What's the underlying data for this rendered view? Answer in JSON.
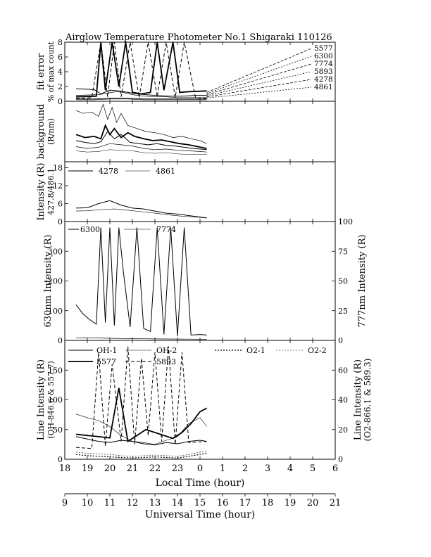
{
  "title": "Airglow Temperature Photometer No.1  Shigaraki  110126",
  "local_axis": {
    "label": "Local Time (hour)",
    "ticks": [
      "18",
      "19",
      "20",
      "21",
      "22",
      "23",
      "0",
      "1",
      "2",
      "3",
      "4",
      "5",
      "6"
    ]
  },
  "ut_axis": {
    "label": "Universal Time (hour)",
    "ticks": [
      "9",
      "10",
      "11",
      "12",
      "13",
      "14",
      "15",
      "16",
      "17",
      "18",
      "19",
      "20",
      "21"
    ]
  },
  "chart_data": [
    {
      "id": "fit_error",
      "type": "line",
      "ylabel_lines": [
        "fit error",
        "% of max count"
      ],
      "ylim": [
        0,
        8
      ],
      "yticks": [
        "0",
        "2",
        "4",
        "6",
        "8"
      ],
      "legend_labels": [
        "5577",
        "6300",
        "7774",
        "5893",
        "4278",
        "4861"
      ],
      "series": [
        {
          "name": "5577",
          "x": [
            18.5,
            19.4,
            19.6,
            19.8,
            20.1,
            20.4,
            20.7,
            21.0,
            21.4,
            21.8,
            22.1,
            22.4,
            22.8,
            23.1,
            23.5,
            0.3
          ],
          "y": [
            0.6,
            0.7,
            8,
            1.5,
            8,
            2,
            8,
            1.2,
            1.0,
            1.2,
            8,
            1.5,
            8,
            1.2,
            1.3,
            1.4
          ]
        },
        {
          "name": "6300",
          "x": [
            18.5,
            19.3,
            19.6,
            20.0,
            20.4,
            20.8,
            21.2,
            21.6,
            22.0,
            22.6,
            23.2,
            23.8,
            0.3
          ],
          "y": [
            1.7,
            1.6,
            1.0,
            1.5,
            1.4,
            1.2,
            1.0,
            0.9,
            0.8,
            0.7,
            0.7,
            0.8,
            0.8
          ]
        },
        {
          "name": "7774",
          "x": [
            18.5,
            19.5,
            19.9,
            20.3,
            20.6,
            21.0,
            21.5,
            22.0,
            22.5,
            23.0,
            23.5,
            0.3
          ],
          "y": [
            0.8,
            0.9,
            1.1,
            1.3,
            1.2,
            0.9,
            0.7,
            0.6,
            0.6,
            0.5,
            0.5,
            0.5
          ]
        },
        {
          "name": "5893",
          "x": [
            18.5,
            19.2,
            19.6,
            19.9,
            20.2,
            20.5,
            20.9,
            21.3,
            21.7,
            22.1,
            22.5,
            22.9,
            23.3,
            23.8,
            0.3
          ],
          "y": [
            0.4,
            0.5,
            8,
            0.6,
            8,
            0.6,
            8,
            0.5,
            8,
            0.6,
            8,
            0.5,
            8,
            0.5,
            0.4
          ]
        },
        {
          "name": "4278",
          "x": [
            18.5,
            19.3,
            20.0,
            20.8,
            21.5,
            22.2,
            23.0,
            23.7,
            0.3
          ],
          "y": [
            0.3,
            0.3,
            0.4,
            0.4,
            0.3,
            0.3,
            0.3,
            0.3,
            0.3
          ]
        },
        {
          "name": "4861",
          "x": [
            18.5,
            19.3,
            20.0,
            20.8,
            21.5,
            22.2,
            23.0,
            23.7,
            0.3
          ],
          "y": [
            0.2,
            0.2,
            0.3,
            0.3,
            0.2,
            0.2,
            0.2,
            0.2,
            0.2
          ]
        }
      ]
    },
    {
      "id": "background",
      "type": "line",
      "ylabel_lines": [
        "background",
        "(R/nm)"
      ],
      "ylim": [
        0,
        100
      ],
      "yticks": [],
      "series": [
        {
          "name": "b1",
          "x": [
            18.5,
            18.8,
            19.2,
            19.5,
            19.7,
            19.9,
            20.1,
            20.3,
            20.5,
            20.8,
            21.2,
            21.6,
            22.0,
            22.4,
            22.8,
            23.2,
            23.6,
            0.0,
            0.3
          ],
          "y": [
            85,
            80,
            82,
            75,
            95,
            70,
            90,
            65,
            80,
            60,
            55,
            50,
            48,
            45,
            40,
            42,
            38,
            35,
            30
          ]
        },
        {
          "name": "b2",
          "x": [
            18.5,
            18.9,
            19.3,
            19.6,
            19.8,
            20.0,
            20.2,
            20.5,
            20.8,
            21.1,
            21.5,
            21.9,
            22.3,
            22.7,
            23.1,
            23.5,
            23.9,
            0.3
          ],
          "y": [
            45,
            40,
            42,
            38,
            60,
            45,
            55,
            40,
            48,
            42,
            38,
            35,
            36,
            33,
            30,
            28,
            25,
            22
          ]
        },
        {
          "name": "b3",
          "x": [
            18.5,
            18.9,
            19.3,
            19.6,
            19.9,
            20.2,
            20.5,
            20.9,
            21.3,
            21.7,
            22.1,
            22.5,
            22.9,
            23.3,
            23.7,
            0.3
          ],
          "y": [
            35,
            32,
            30,
            33,
            50,
            38,
            45,
            32,
            30,
            28,
            30,
            27,
            26,
            24,
            22,
            20
          ]
        },
        {
          "name": "b4",
          "x": [
            18.5,
            19.0,
            19.5,
            20.0,
            20.5,
            21.0,
            21.5,
            22.0,
            22.5,
            23.0,
            23.5,
            0.0,
            0.3
          ],
          "y": [
            25,
            22,
            24,
            30,
            28,
            26,
            22,
            20,
            21,
            19,
            18,
            17,
            16
          ]
        },
        {
          "name": "b5",
          "x": [
            18.5,
            19.0,
            19.5,
            20.0,
            20.5,
            21.0,
            21.5,
            22.0,
            22.5,
            23.0,
            23.5,
            0.3
          ],
          "y": [
            18,
            16,
            17,
            20,
            19,
            18,
            15,
            14,
            15,
            13,
            12,
            12
          ]
        }
      ]
    },
    {
      "id": "intensity_427",
      "type": "line",
      "ylabel_lines": [
        "Intensity (R)",
        "427.8/486.1"
      ],
      "ylim": [
        0,
        20
      ],
      "yticks": [
        "0",
        "6",
        "12",
        "18"
      ],
      "legend_labels": [
        "4278",
        "4861"
      ],
      "series": [
        {
          "name": "4278",
          "x": [
            18.5,
            19.0,
            19.5,
            20.0,
            20.5,
            21.0,
            21.5,
            22.0,
            22.5,
            23.0,
            23.5,
            0.0,
            0.3
          ],
          "y": [
            4.5,
            4.6,
            6.0,
            7.0,
            5.5,
            4.5,
            4.2,
            3.5,
            2.8,
            2.5,
            2.0,
            1.5,
            1.2
          ]
        },
        {
          "name": "4861",
          "x": [
            18.5,
            19.0,
            19.6,
            20.2,
            20.8,
            21.4,
            22.0,
            22.6,
            23.2,
            23.8,
            0.3
          ],
          "y": [
            3.5,
            3.6,
            4.0,
            4.2,
            3.8,
            3.3,
            2.8,
            2.2,
            1.8,
            1.5,
            1.2
          ]
        }
      ]
    },
    {
      "id": "intensity_630",
      "type": "line",
      "ylabel": "630nm Intensity (R)",
      "ylabel_right": "777nm Intensity (R)",
      "ylim": [
        0,
        400
      ],
      "ylim_right": [
        0,
        100
      ],
      "yticks": [
        "0",
        "100",
        "200",
        "300"
      ],
      "yticks_right": [
        "0",
        "25",
        "50",
        "75",
        "100"
      ],
      "legend_labels": [
        "6300",
        "7774"
      ],
      "series": [
        {
          "name": "6300",
          "x": [
            18.5,
            18.8,
            19.1,
            19.4,
            19.6,
            19.8,
            20.0,
            20.2,
            20.4,
            20.6,
            20.9,
            21.2,
            21.5,
            21.8,
            22.1,
            22.4,
            22.7,
            23.0,
            23.3,
            23.6,
            0.0,
            0.3
          ],
          "y": [
            120,
            90,
            70,
            55,
            380,
            60,
            380,
            50,
            380,
            230,
            45,
            380,
            40,
            30,
            380,
            20,
            380,
            15,
            380,
            18,
            20,
            18
          ]
        },
        {
          "name": "7774",
          "x": [
            18.5,
            19.0,
            19.5,
            20.0,
            20.5,
            21.0,
            21.5,
            22.0,
            22.5,
            23.0,
            23.5,
            0.0,
            0.3
          ],
          "y": [
            9,
            8.5,
            8,
            7,
            6.5,
            6,
            5.5,
            5,
            4.8,
            4.5,
            4.2,
            4,
            3.8
          ]
        }
      ]
    },
    {
      "id": "line_intensity",
      "type": "line",
      "ylabel_lines": [
        "Line Intensity (R)",
        "(OH-846.6 & 557.7)"
      ],
      "ylabel_right_lines": [
        "Line Intensity (R)",
        "(O2-866.1 & 589.3)"
      ],
      "ylim": [
        0,
        200
      ],
      "ylim_right": [
        0,
        80
      ],
      "yticks": [
        "0",
        "50",
        "100",
        "150"
      ],
      "yticks_right": [
        "0",
        "20",
        "40",
        "60"
      ],
      "legend_labels": [
        "OH-1",
        "OH-2",
        "O2-1",
        "O2-2",
        "5577",
        "5893"
      ],
      "series": [
        {
          "name": "OH-1",
          "x": [
            18.5,
            19.0,
            19.5,
            20.0,
            20.5,
            21.0,
            21.5,
            22.0,
            22.5,
            23.0,
            23.5,
            0.0,
            0.3
          ],
          "y": [
            38,
            34,
            30,
            28,
            32,
            30,
            26,
            24,
            28,
            26,
            30,
            32,
            30
          ]
        },
        {
          "name": "OH-2",
          "x": [
            18.5,
            19.0,
            19.5,
            20.0,
            20.5,
            21.0,
            21.5,
            22.0,
            22.5,
            23.0,
            23.5,
            0.0,
            0.3
          ],
          "y": [
            76,
            70,
            65,
            55,
            40,
            30,
            28,
            25,
            32,
            38,
            60,
            70,
            55
          ]
        },
        {
          "name": "O2-1",
          "x": [
            18.5,
            19.0,
            19.5,
            20.0,
            20.5,
            21.0,
            21.5,
            22.0,
            22.5,
            23.0,
            23.5,
            0.0,
            0.3
          ],
          "y": [
            8,
            6,
            5,
            4,
            3,
            2,
            3,
            4,
            3,
            2,
            5,
            8,
            10
          ]
        },
        {
          "name": "O2-2",
          "x": [
            18.5,
            19.0,
            19.5,
            20.0,
            20.5,
            21.0,
            21.5,
            22.0,
            22.5,
            23.0,
            23.5,
            0.0,
            0.3
          ],
          "y": [
            12,
            10,
            9,
            8,
            6,
            5,
            6,
            7,
            6,
            5,
            8,
            12,
            14
          ]
        },
        {
          "name": "5577",
          "x": [
            18.5,
            19.0,
            19.5,
            20.0,
            20.4,
            20.8,
            21.2,
            21.6,
            22.0,
            22.4,
            22.8,
            23.2,
            23.6,
            0.0,
            0.3
          ],
          "y": [
            42,
            40,
            38,
            36,
            120,
            30,
            40,
            50,
            45,
            40,
            35,
            45,
            60,
            80,
            86
          ]
        },
        {
          "name": "5893",
          "x": [
            18.5,
            19.2,
            19.5,
            19.8,
            20.1,
            20.5,
            20.8,
            21.1,
            21.4,
            21.7,
            22.0,
            22.3,
            22.6,
            22.9,
            23.2,
            23.5,
            0.3
          ],
          "y": [
            20,
            18,
            180,
            22,
            160,
            30,
            190,
            25,
            170,
            40,
            180,
            30,
            190,
            25,
            180,
            28,
            30
          ]
        }
      ]
    }
  ]
}
